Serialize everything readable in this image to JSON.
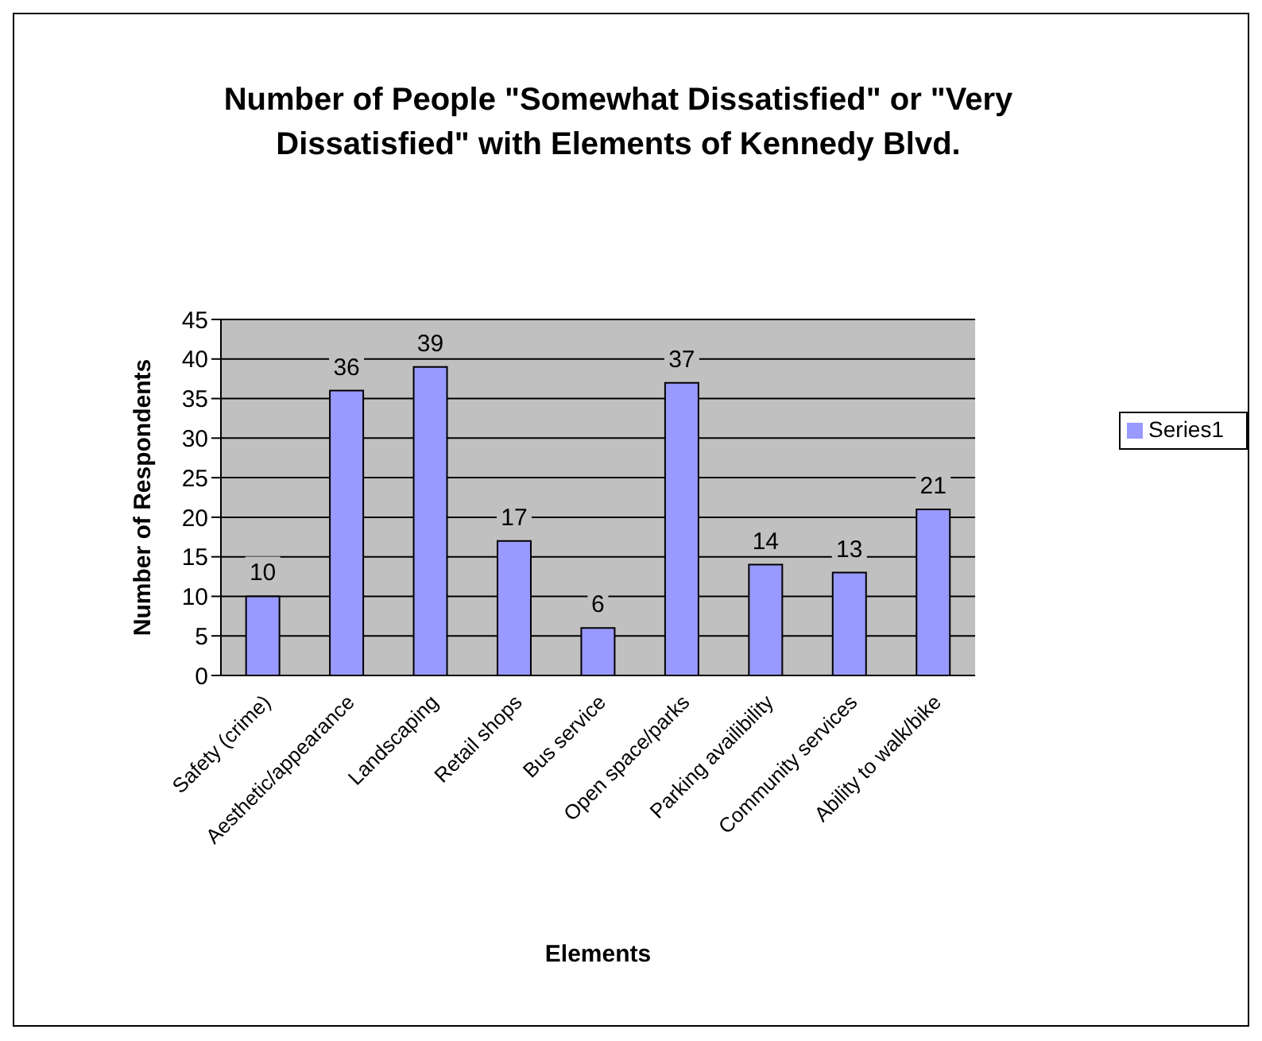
{
  "chart_data": {
    "type": "bar",
    "title": "Number of People \"Somewhat Dissatisfied\" or \"Very Dissatisfied\" with Elements of Kennedy Blvd.",
    "xlabel": "Elements",
    "ylabel": "Number of Respondents",
    "categories": [
      "Safety (crime)",
      "Aesthetic/appearance",
      "Landscaping",
      "Retail shops",
      "Bus service",
      "Open space/parks",
      "Parking availibility",
      "Community services",
      "Ability to walk/bike"
    ],
    "series": [
      {
        "name": "Series1",
        "color": "#9999ff",
        "values": [
          10,
          36,
          39,
          17,
          6,
          37,
          14,
          13,
          21
        ]
      }
    ],
    "ylim": [
      0,
      45
    ],
    "yticks": [
      0,
      5,
      10,
      15,
      20,
      25,
      30,
      35,
      40,
      45
    ],
    "grid": "y",
    "legend": "right",
    "data_labels": true
  }
}
